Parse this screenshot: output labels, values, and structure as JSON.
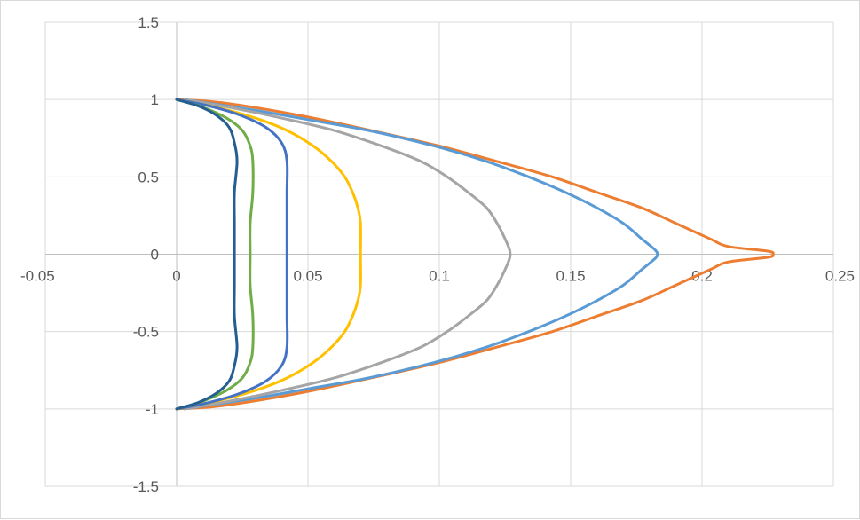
{
  "chart_data": {
    "type": "scatter",
    "title": "",
    "xlabel": "",
    "ylabel": "",
    "xlim": [
      -0.05,
      0.25
    ],
    "ylim": [
      -1.5,
      1.5
    ],
    "x_ticks": [
      "-0.05",
      "0",
      "0.05",
      "0.1",
      "0.15",
      "0.2",
      "0.25"
    ],
    "y_ticks": [
      "1.5",
      "1",
      "0.5",
      "0",
      "-0.5",
      "-1",
      "-1.5"
    ],
    "grid": true,
    "legend": "none",
    "series": [
      {
        "color": "#ED7D31",
        "points": [
          [
            0,
            1
          ],
          [
            0.017,
            0.98
          ],
          [
            0.046,
            0.9
          ],
          [
            0.074,
            0.8
          ],
          [
            0.1,
            0.7
          ],
          [
            0.122,
            0.6
          ],
          [
            0.143,
            0.5
          ],
          [
            0.16,
            0.4
          ],
          [
            0.177,
            0.3
          ],
          [
            0.19,
            0.2
          ],
          [
            0.203,
            0.1
          ],
          [
            0.21,
            0.05
          ],
          [
            0.225,
            0.02
          ],
          [
            0.227,
            0
          ],
          [
            0.225,
            -0.02
          ],
          [
            0.21,
            -0.05
          ],
          [
            0.203,
            -0.1
          ],
          [
            0.19,
            -0.2
          ],
          [
            0.177,
            -0.3
          ],
          [
            0.16,
            -0.4
          ],
          [
            0.143,
            -0.5
          ],
          [
            0.122,
            -0.6
          ],
          [
            0.1,
            -0.7
          ],
          [
            0.074,
            -0.8
          ],
          [
            0.046,
            -0.9
          ],
          [
            0.017,
            -0.98
          ],
          [
            0,
            -1
          ]
        ]
      },
      {
        "color": "#5B9BD5",
        "points": [
          [
            0.003,
            1
          ],
          [
            0.03,
            0.93
          ],
          [
            0.05,
            0.87
          ],
          [
            0.073,
            0.8
          ],
          [
            0.098,
            0.7
          ],
          [
            0.118,
            0.6
          ],
          [
            0.134,
            0.5
          ],
          [
            0.148,
            0.4
          ],
          [
            0.16,
            0.3
          ],
          [
            0.17,
            0.2
          ],
          [
            0.177,
            0.1
          ],
          [
            0.182,
            0.03
          ],
          [
            0.183,
            0
          ],
          [
            0.182,
            -0.03
          ],
          [
            0.177,
            -0.1
          ],
          [
            0.17,
            -0.2
          ],
          [
            0.16,
            -0.3
          ],
          [
            0.148,
            -0.4
          ],
          [
            0.134,
            -0.5
          ],
          [
            0.118,
            -0.6
          ],
          [
            0.098,
            -0.7
          ],
          [
            0.073,
            -0.8
          ],
          [
            0.05,
            -0.87
          ],
          [
            0.03,
            -0.93
          ],
          [
            0.003,
            -1
          ]
        ]
      },
      {
        "color": "#A5A5A5",
        "points": [
          [
            0.003,
            1
          ],
          [
            0.02,
            0.95
          ],
          [
            0.04,
            0.88
          ],
          [
            0.06,
            0.8
          ],
          [
            0.078,
            0.7
          ],
          [
            0.093,
            0.6
          ],
          [
            0.103,
            0.5
          ],
          [
            0.111,
            0.4
          ],
          [
            0.118,
            0.3
          ],
          [
            0.122,
            0.2
          ],
          [
            0.125,
            0.1
          ],
          [
            0.127,
            0
          ],
          [
            0.125,
            -0.1
          ],
          [
            0.122,
            -0.2
          ],
          [
            0.118,
            -0.3
          ],
          [
            0.111,
            -0.4
          ],
          [
            0.103,
            -0.5
          ],
          [
            0.093,
            -0.6
          ],
          [
            0.078,
            -0.7
          ],
          [
            0.06,
            -0.8
          ],
          [
            0.04,
            -0.88
          ],
          [
            0.02,
            -0.95
          ],
          [
            0.003,
            -1
          ]
        ]
      },
      {
        "color": "#FFC000",
        "points": [
          [
            0,
            1
          ],
          [
            0.015,
            0.95
          ],
          [
            0.03,
            0.88
          ],
          [
            0.042,
            0.8
          ],
          [
            0.052,
            0.7
          ],
          [
            0.059,
            0.6
          ],
          [
            0.064,
            0.5
          ],
          [
            0.067,
            0.4
          ],
          [
            0.069,
            0.3
          ],
          [
            0.07,
            0.2
          ],
          [
            0.07,
            0
          ],
          [
            0.07,
            -0.2
          ],
          [
            0.069,
            -0.3
          ],
          [
            0.067,
            -0.4
          ],
          [
            0.064,
            -0.5
          ],
          [
            0.059,
            -0.6
          ],
          [
            0.052,
            -0.7
          ],
          [
            0.042,
            -0.8
          ],
          [
            0.03,
            -0.88
          ],
          [
            0.015,
            -0.95
          ],
          [
            0,
            -1
          ]
        ]
      },
      {
        "color": "#4472C4",
        "points": [
          [
            0,
            1
          ],
          [
            0.012,
            0.96
          ],
          [
            0.024,
            0.9
          ],
          [
            0.034,
            0.82
          ],
          [
            0.04,
            0.72
          ],
          [
            0.042,
            0.6
          ],
          [
            0.042,
            0.4
          ],
          [
            0.042,
            0.2
          ],
          [
            0.042,
            0
          ],
          [
            0.042,
            -0.2
          ],
          [
            0.042,
            -0.4
          ],
          [
            0.042,
            -0.6
          ],
          [
            0.04,
            -0.72
          ],
          [
            0.034,
            -0.82
          ],
          [
            0.024,
            -0.9
          ],
          [
            0.012,
            -0.96
          ],
          [
            0,
            -1
          ]
        ]
      },
      {
        "color": "#70AD47",
        "points": [
          [
            0,
            1
          ],
          [
            0.01,
            0.95
          ],
          [
            0.019,
            0.88
          ],
          [
            0.025,
            0.8
          ],
          [
            0.028,
            0.7
          ],
          [
            0.029,
            0.6
          ],
          [
            0.029,
            0.4
          ],
          [
            0.028,
            0.2
          ],
          [
            0.028,
            0
          ],
          [
            0.028,
            -0.2
          ],
          [
            0.029,
            -0.4
          ],
          [
            0.029,
            -0.6
          ],
          [
            0.028,
            -0.7
          ],
          [
            0.025,
            -0.8
          ],
          [
            0.019,
            -0.88
          ],
          [
            0.01,
            -0.95
          ],
          [
            0,
            -1
          ]
        ]
      },
      {
        "color": "#255E91",
        "points": [
          [
            0,
            1
          ],
          [
            0.008,
            0.96
          ],
          [
            0.015,
            0.9
          ],
          [
            0.02,
            0.82
          ],
          [
            0.022,
            0.72
          ],
          [
            0.023,
            0.6
          ],
          [
            0.022,
            0.4
          ],
          [
            0.022,
            0.2
          ],
          [
            0.022,
            0
          ],
          [
            0.022,
            -0.2
          ],
          [
            0.022,
            -0.4
          ],
          [
            0.023,
            -0.6
          ],
          [
            0.022,
            -0.72
          ],
          [
            0.02,
            -0.82
          ],
          [
            0.015,
            -0.9
          ],
          [
            0.008,
            -0.96
          ],
          [
            0,
            -1
          ]
        ]
      }
    ]
  }
}
